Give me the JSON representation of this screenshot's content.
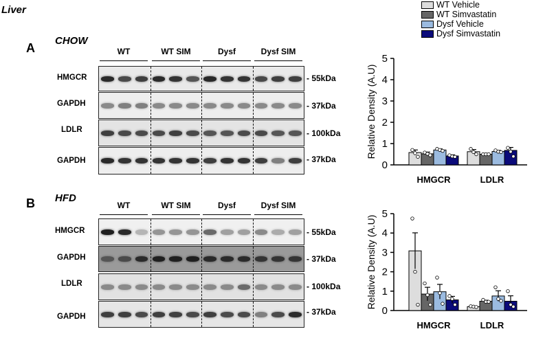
{
  "figure": {
    "title": "Liver"
  },
  "legend": [
    {
      "label": "WT Vehicle",
      "color": "#dddddd"
    },
    {
      "label": "WT Simvastatin",
      "color": "#666666"
    },
    {
      "label": "Dysf Vehicle",
      "color": "#9bbbe0"
    },
    {
      "label": "Dysf Simvastatin",
      "color": "#0b0b7a"
    }
  ],
  "panels": [
    {
      "letter": "A",
      "title": "CHOW",
      "groups": [
        "WT",
        "WT SIM",
        "Dysf",
        "Dysf SIM"
      ],
      "blots": [
        {
          "label": "HMGCR",
          "kda": "- 55kDa",
          "bg": "#e9e9e9",
          "bands": [
            0.9,
            0.75,
            0.8,
            0.9,
            0.85,
            0.7,
            0.9,
            0.85,
            0.85,
            0.75,
            0.8,
            0.8
          ]
        },
        {
          "label": "GAPDH",
          "kda": "- 37kDa",
          "bg": "#eeeeee",
          "bands": [
            0.45,
            0.5,
            0.5,
            0.45,
            0.45,
            0.45,
            0.45,
            0.45,
            0.45,
            0.45,
            0.45,
            0.45
          ]
        },
        {
          "label": "LDLR",
          "kda": "- 100kDa",
          "bg": "#e4e4e4",
          "bands": [
            0.8,
            0.75,
            0.75,
            0.75,
            0.8,
            0.75,
            0.7,
            0.7,
            0.75,
            0.75,
            0.7,
            0.7
          ]
        },
        {
          "label": "GAPDH",
          "kda": "- 37kDa",
          "bg": "#eeeeee",
          "bands": [
            0.9,
            0.85,
            0.85,
            0.85,
            0.85,
            0.85,
            0.8,
            0.85,
            0.85,
            0.8,
            0.5,
            0.8
          ]
        }
      ]
    },
    {
      "letter": "B",
      "title": "HFD",
      "groups": [
        "WT",
        "WT SIM",
        "Dysf",
        "Dysf SIM"
      ],
      "blots": [
        {
          "label": "HMGCR",
          "kda": "- 55kDa",
          "bg": "#f0f0f0",
          "bands": [
            0.95,
            0.9,
            0.25,
            0.4,
            0.4,
            0.4,
            0.6,
            0.35,
            0.35,
            0.45,
            0.3,
            0.35
          ]
        },
        {
          "label": "GAPDH",
          "kda": "- 37kDa",
          "bg": "#9a9a9a",
          "bands": [
            0.7,
            0.75,
            0.9,
            0.95,
            0.95,
            0.95,
            0.9,
            0.9,
            0.9,
            0.85,
            0.85,
            0.85
          ]
        },
        {
          "label": "LDLR",
          "kda": "- 100kDa",
          "bg": "#e2e2e2",
          "bands": [
            0.45,
            0.45,
            0.45,
            0.45,
            0.45,
            0.45,
            0.45,
            0.45,
            0.6,
            0.45,
            0.45,
            0.45
          ]
        },
        {
          "label": "GAPDH",
          "kda": "- 37kDa",
          "bg": "#e6e6e6",
          "bands": [
            0.8,
            0.8,
            0.75,
            0.8,
            0.8,
            0.75,
            0.8,
            0.75,
            0.75,
            0.5,
            0.75,
            0.9
          ]
        }
      ]
    }
  ],
  "chart_data": [
    {
      "type": "bar",
      "panel": "A",
      "ylabel": "Relative Density (A.U)",
      "ylim": [
        0,
        5
      ],
      "yticks": [
        "0",
        "1",
        "2",
        "3",
        "4",
        "5"
      ],
      "categories": [
        "HMGCR",
        "LDLR"
      ],
      "series": [
        {
          "name": "WT Vehicle",
          "values": [
            0.58,
            0.62
          ],
          "errors": [
            0.12,
            0.1
          ],
          "points": [
            [
              0.7,
              0.55,
              0.38
            ],
            [
              0.75,
              0.6,
              0.5
            ]
          ]
        },
        {
          "name": "WT Simvastatin",
          "values": [
            0.52,
            0.5
          ],
          "errors": [
            0.08,
            0.02
          ],
          "points": [
            [
              0.58,
              0.52,
              0.45
            ],
            [
              0.5,
              0.5,
              0.5
            ]
          ]
        },
        {
          "name": "Dysf Vehicle",
          "values": [
            0.7,
            0.63
          ],
          "errors": [
            0.05,
            0.05
          ],
          "points": [
            [
              0.75,
              0.7,
              0.66
            ],
            [
              0.68,
              0.62,
              0.6
            ]
          ]
        },
        {
          "name": "Dysf Simvastatin",
          "values": [
            0.42,
            0.68
          ],
          "errors": [
            0.05,
            0.14
          ],
          "points": [
            [
              0.45,
              0.4,
              0.38
            ],
            [
              0.8,
              0.62,
              0.4
            ]
          ]
        }
      ]
    },
    {
      "type": "bar",
      "panel": "B",
      "ylabel": "Relative Density (A.U)",
      "ylim": [
        0,
        5
      ],
      "yticks": [
        "0",
        "1",
        "2",
        "3",
        "4",
        "5"
      ],
      "categories": [
        "HMGCR",
        "LDLR"
      ],
      "series": [
        {
          "name": "WT Vehicle",
          "values": [
            3.08,
            0.2
          ],
          "errors": [
            0.93,
            0.02
          ],
          "points": [
            [
              4.75,
              2.0,
              0.3
            ],
            [
              0.22,
              0.2,
              0.18
            ]
          ]
        },
        {
          "name": "WT Simvastatin",
          "values": [
            0.85,
            0.48
          ],
          "errors": [
            0.35,
            0.05
          ],
          "points": [
            [
              1.4,
              0.8,
              0.3
            ],
            [
              0.55,
              0.45,
              0.45
            ]
          ]
        },
        {
          "name": "Dysf Vehicle",
          "values": [
            0.97,
            0.75
          ],
          "errors": [
            0.38,
            0.27
          ],
          "points": [
            [
              1.7,
              0.9,
              0.35
            ],
            [
              1.2,
              0.6,
              0.5
            ]
          ]
        },
        {
          "name": "Dysf Simvastatin",
          "values": [
            0.55,
            0.48
          ],
          "errors": [
            0.18,
            0.28
          ],
          "points": [
            [
              0.75,
              0.6,
              0.3
            ],
            [
              1.0,
              0.3,
              0.2
            ]
          ]
        }
      ]
    }
  ]
}
